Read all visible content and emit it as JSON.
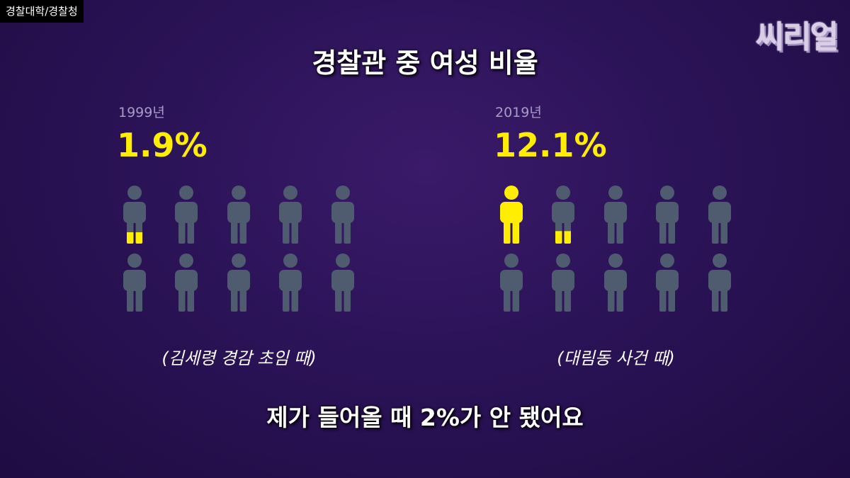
{
  "source_tag": "경찰대학/경찰청",
  "logo": "씨리얼",
  "title": "경찰관 중 여성 비율",
  "subtitle": "제가 들어올 때 2%가 안 됐어요",
  "colors": {
    "highlight": "#ffee00",
    "figure": "#4f5b6e",
    "background": "#2b1357"
  },
  "chart_data": {
    "type": "pictograph",
    "title": "경찰관 중 여성 비율",
    "unit_per_icon": 10,
    "icons_total": 10,
    "panels": [
      {
        "year": "1999년",
        "value": 1.9,
        "value_label": "1.9%",
        "caption": "(김세령 경감 초임 때)"
      },
      {
        "year": "2019년",
        "value": 12.1,
        "value_label": "12.1%",
        "caption": "(대림동 사건 때)"
      }
    ]
  }
}
